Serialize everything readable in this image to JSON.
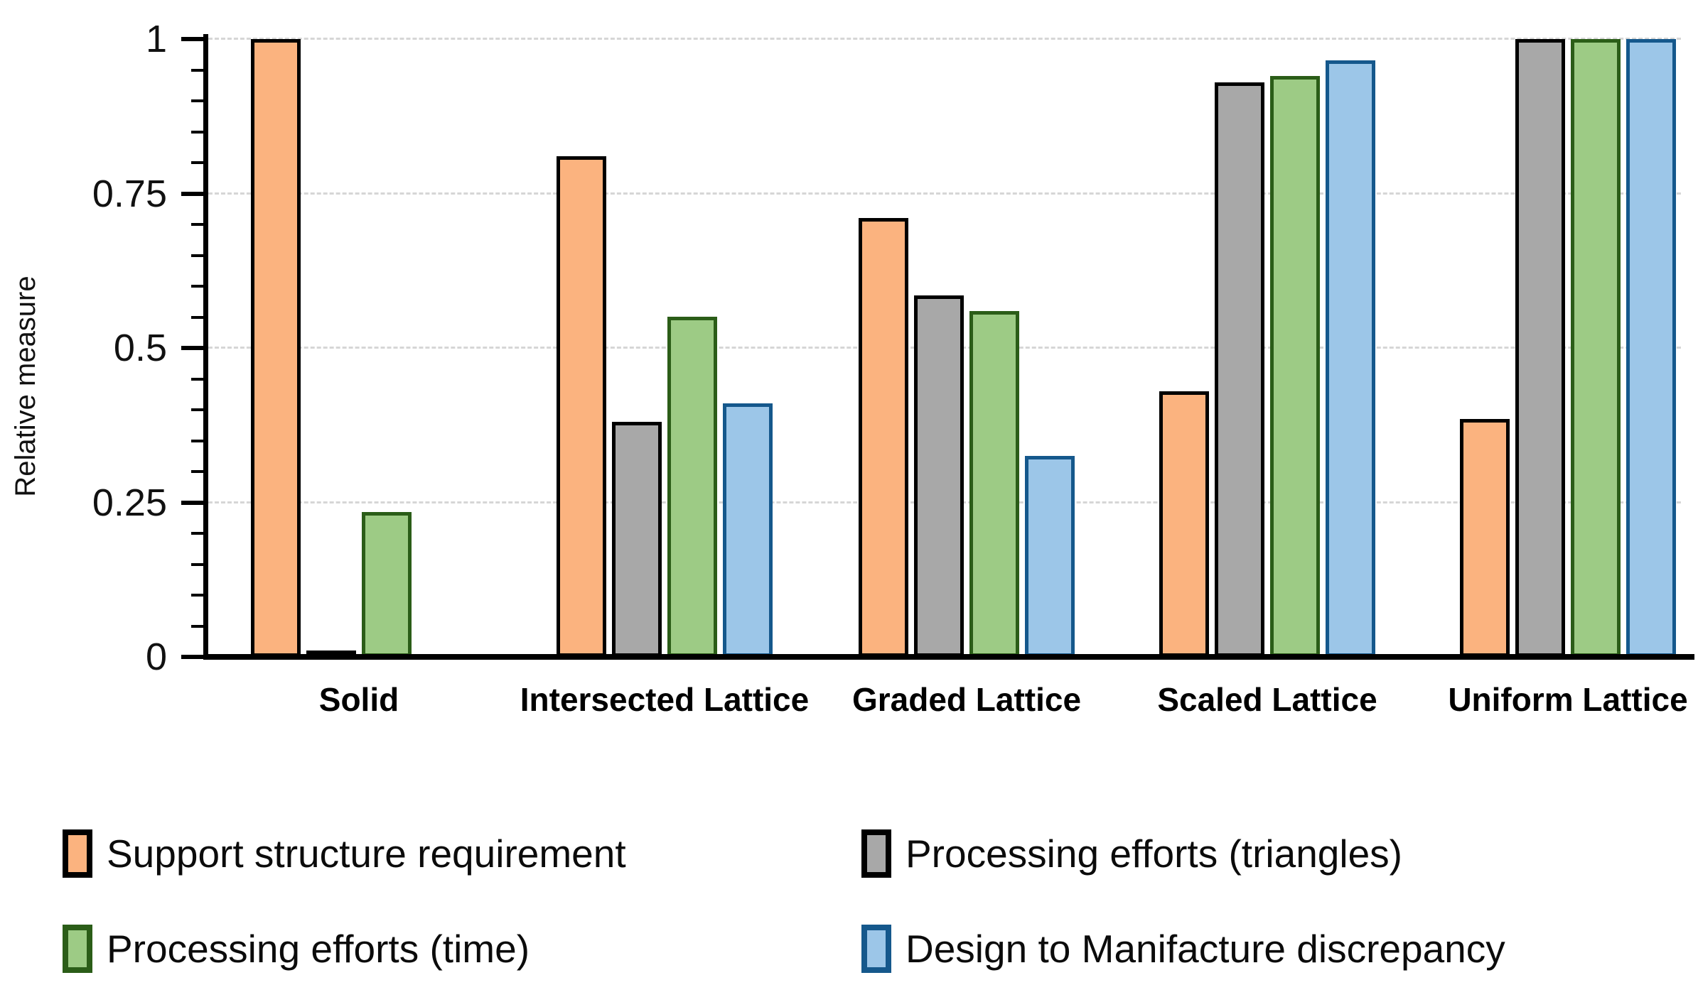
{
  "chart_data": {
    "type": "bar",
    "title": "",
    "ylabel": "Relative measure",
    "ylim": [
      0,
      1
    ],
    "grid": "horizontal dashed gridlines at 0.25 intervals",
    "legend_position": "bottom, two columns by two rows",
    "minor_tick_step": 0.05,
    "yticks": [
      {
        "label": "0",
        "value": 0
      },
      {
        "label": "0.25",
        "value": 0.25
      },
      {
        "label": "0.5",
        "value": 0.5
      },
      {
        "label": "0.75",
        "value": 0.75
      },
      {
        "label": "1",
        "value": 1
      }
    ],
    "categories": [
      "Solid",
      "Intersected Lattice",
      "Graded Lattice",
      "Scaled Lattice",
      "Uniform Lattice"
    ],
    "series": [
      {
        "name": "Support structure requirement",
        "fill": "#FBB37F",
        "stroke": "#000000",
        "values": [
          1,
          0.81,
          0.71,
          0.43,
          0.385
        ]
      },
      {
        "name": "Processing efforts (triangles)",
        "fill": "#A8A8A8",
        "stroke": "#000000",
        "values": [
          0.01,
          0.38,
          0.585,
          0.93,
          1
        ]
      },
      {
        "name": "Processing efforts (time)",
        "fill": "#9DCB85",
        "stroke": "#2B5D18",
        "values": [
          0.235,
          0.55,
          0.56,
          0.94,
          1
        ]
      },
      {
        "name": "Design to Manifacture discrepancy",
        "fill": "#9CC6E8",
        "stroke": "#15588C",
        "values": [
          0.005,
          0.41,
          0.325,
          0.965,
          1
        ]
      }
    ],
    "colors": {
      "gridline": "#D6D6D6",
      "axis": "#000000",
      "text": "#111111"
    }
  }
}
